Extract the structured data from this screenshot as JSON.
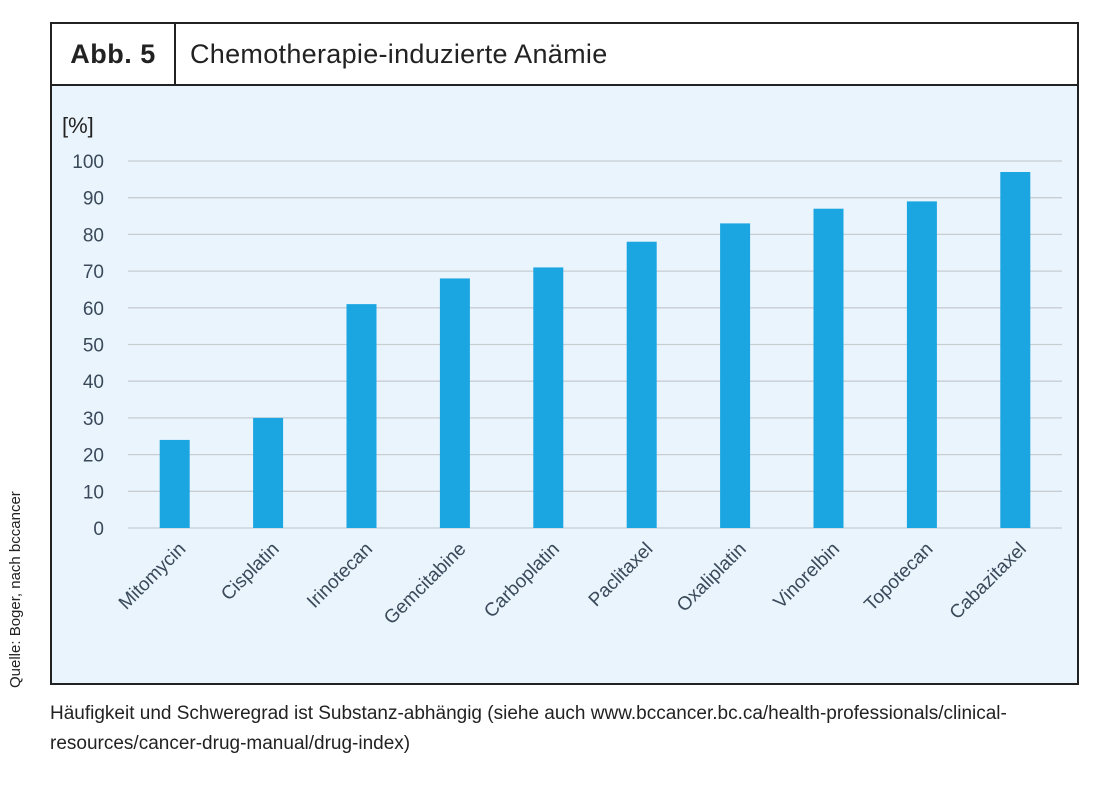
{
  "figure": {
    "label": "Abb. 5",
    "title": "Chemotherapie-induzierte Anämie"
  },
  "source_note": "Quelle: Boger, nach bccancer",
  "caption": "Häufigkeit und Schweregrad ist Substanz-abhängig (siehe auch www.bccancer.bc.ca/health-professionals/clinical-resources/cancer-drug-manual/drug-index)",
  "colors": {
    "bar": "#1ba6e2",
    "plot_background": "#eaf4fc",
    "grid": "#c8cdd2"
  },
  "chart_data": {
    "type": "bar",
    "title": "",
    "xlabel": "",
    "ylabel": "[%]",
    "ylim": [
      0,
      100
    ],
    "yticks": [
      0,
      10,
      20,
      30,
      40,
      50,
      60,
      70,
      80,
      90,
      100
    ],
    "grid": true,
    "categories": [
      "Mitomycin",
      "Cisplatin",
      "Irinotecan",
      "Gemcitabine",
      "Carboplatin",
      "Paclitaxel",
      "Oxaliplatin",
      "Vinorelbin",
      "Topotecan",
      "Cabazitaxel"
    ],
    "values": [
      24,
      30,
      61,
      68,
      71,
      78,
      83,
      87,
      89,
      97
    ]
  }
}
